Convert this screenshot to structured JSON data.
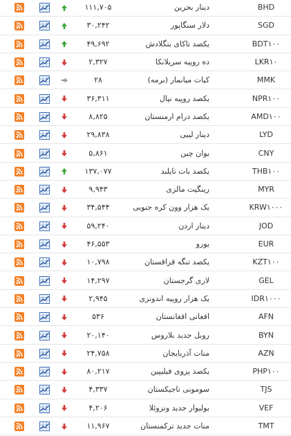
{
  "table": {
    "rows": [
      {
        "code": "BHD",
        "name": "دینار بحرین",
        "rate": "۱۱۱,۷۰۵",
        "trend": "up"
      },
      {
        "code": "SGD",
        "name": "دلار سنگاپور",
        "rate": "۳۰,۲۴۲",
        "trend": "up"
      },
      {
        "code": "BDT۱۰۰",
        "name": "یکصد تاکای بنگلادش",
        "rate": "۴۹,۶۹۲",
        "trend": "up"
      },
      {
        "code": "LKR۱۰",
        "name": "ده روپیه سریلانکا",
        "rate": "۲,۳۲۷",
        "trend": "down"
      },
      {
        "code": "MMK",
        "name": "کیات میانمار (برمه)",
        "rate": "۲۸",
        "trend": "flat"
      },
      {
        "code": "NPR۱۰۰",
        "name": "یکصد روپیه نپال",
        "rate": "۳۶,۳۱۱",
        "trend": "down"
      },
      {
        "code": "AMD۱۰۰",
        "name": "یکصد درام ارمنستان",
        "rate": "۸,۸۲۵",
        "trend": "down"
      },
      {
        "code": "LYD",
        "name": "دینار لیبی",
        "rate": "۲۹,۸۳۸",
        "trend": "down"
      },
      {
        "code": "CNY",
        "name": "یوان چین",
        "rate": "۵,۸۶۱",
        "trend": "down"
      },
      {
        "code": "THB۱۰۰",
        "name": "یکصد بات تایلند",
        "rate": "۱۳۷,۰۷۷",
        "trend": "up"
      },
      {
        "code": "MYR",
        "name": "رینگیت مالزی",
        "rate": "۹,۹۴۳",
        "trend": "down"
      },
      {
        "code": "KRW۱۰۰۰",
        "name": "یک هزار وون کره جنوبی",
        "rate": "۳۴,۵۴۴",
        "trend": "down"
      },
      {
        "code": "JOD",
        "name": "دینار اردن",
        "rate": "۵۹,۲۴۰",
        "trend": "down"
      },
      {
        "code": "EUR",
        "name": "یورو",
        "rate": "۴۶,۵۵۳",
        "trend": "down"
      },
      {
        "code": "KZT۱۰۰",
        "name": "یکصد تنگه قزاقستان",
        "rate": "۱۰,۷۹۸",
        "trend": "down"
      },
      {
        "code": "GEL",
        "name": "لاری گرجستان",
        "rate": "۱۴,۲۹۷",
        "trend": "down"
      },
      {
        "code": "IDR۱۰۰۰",
        "name": "یک هزار روپیه اندونزی",
        "rate": "۲,۹۴۵",
        "trend": "down"
      },
      {
        "code": "AFN",
        "name": "افغانی افغانستان",
        "rate": "۵۳۶",
        "trend": "down"
      },
      {
        "code": "BYN",
        "name": "روبل جدید بلاروس",
        "rate": "۲۰,۱۴۰",
        "trend": "down"
      },
      {
        "code": "AZN",
        "name": "منات آذربایجان",
        "rate": "۲۴,۷۵۸",
        "trend": "down"
      },
      {
        "code": "PHP۱۰۰",
        "name": "یکصد پزوی فیلیپین",
        "rate": "۸۰,۲۱۷",
        "trend": "down"
      },
      {
        "code": "TJS",
        "name": "سومونی تاجیکستان",
        "rate": "۴,۳۳۷",
        "trend": "down"
      },
      {
        "code": "VEF",
        "name": "بولیوار جدید ونزوئلا",
        "rate": "۴,۲۰۶",
        "trend": "down"
      },
      {
        "code": "TMT",
        "name": "منات جدید ترکمنستان",
        "rate": "۱۱,۹۶۷",
        "trend": "down"
      }
    ]
  }
}
